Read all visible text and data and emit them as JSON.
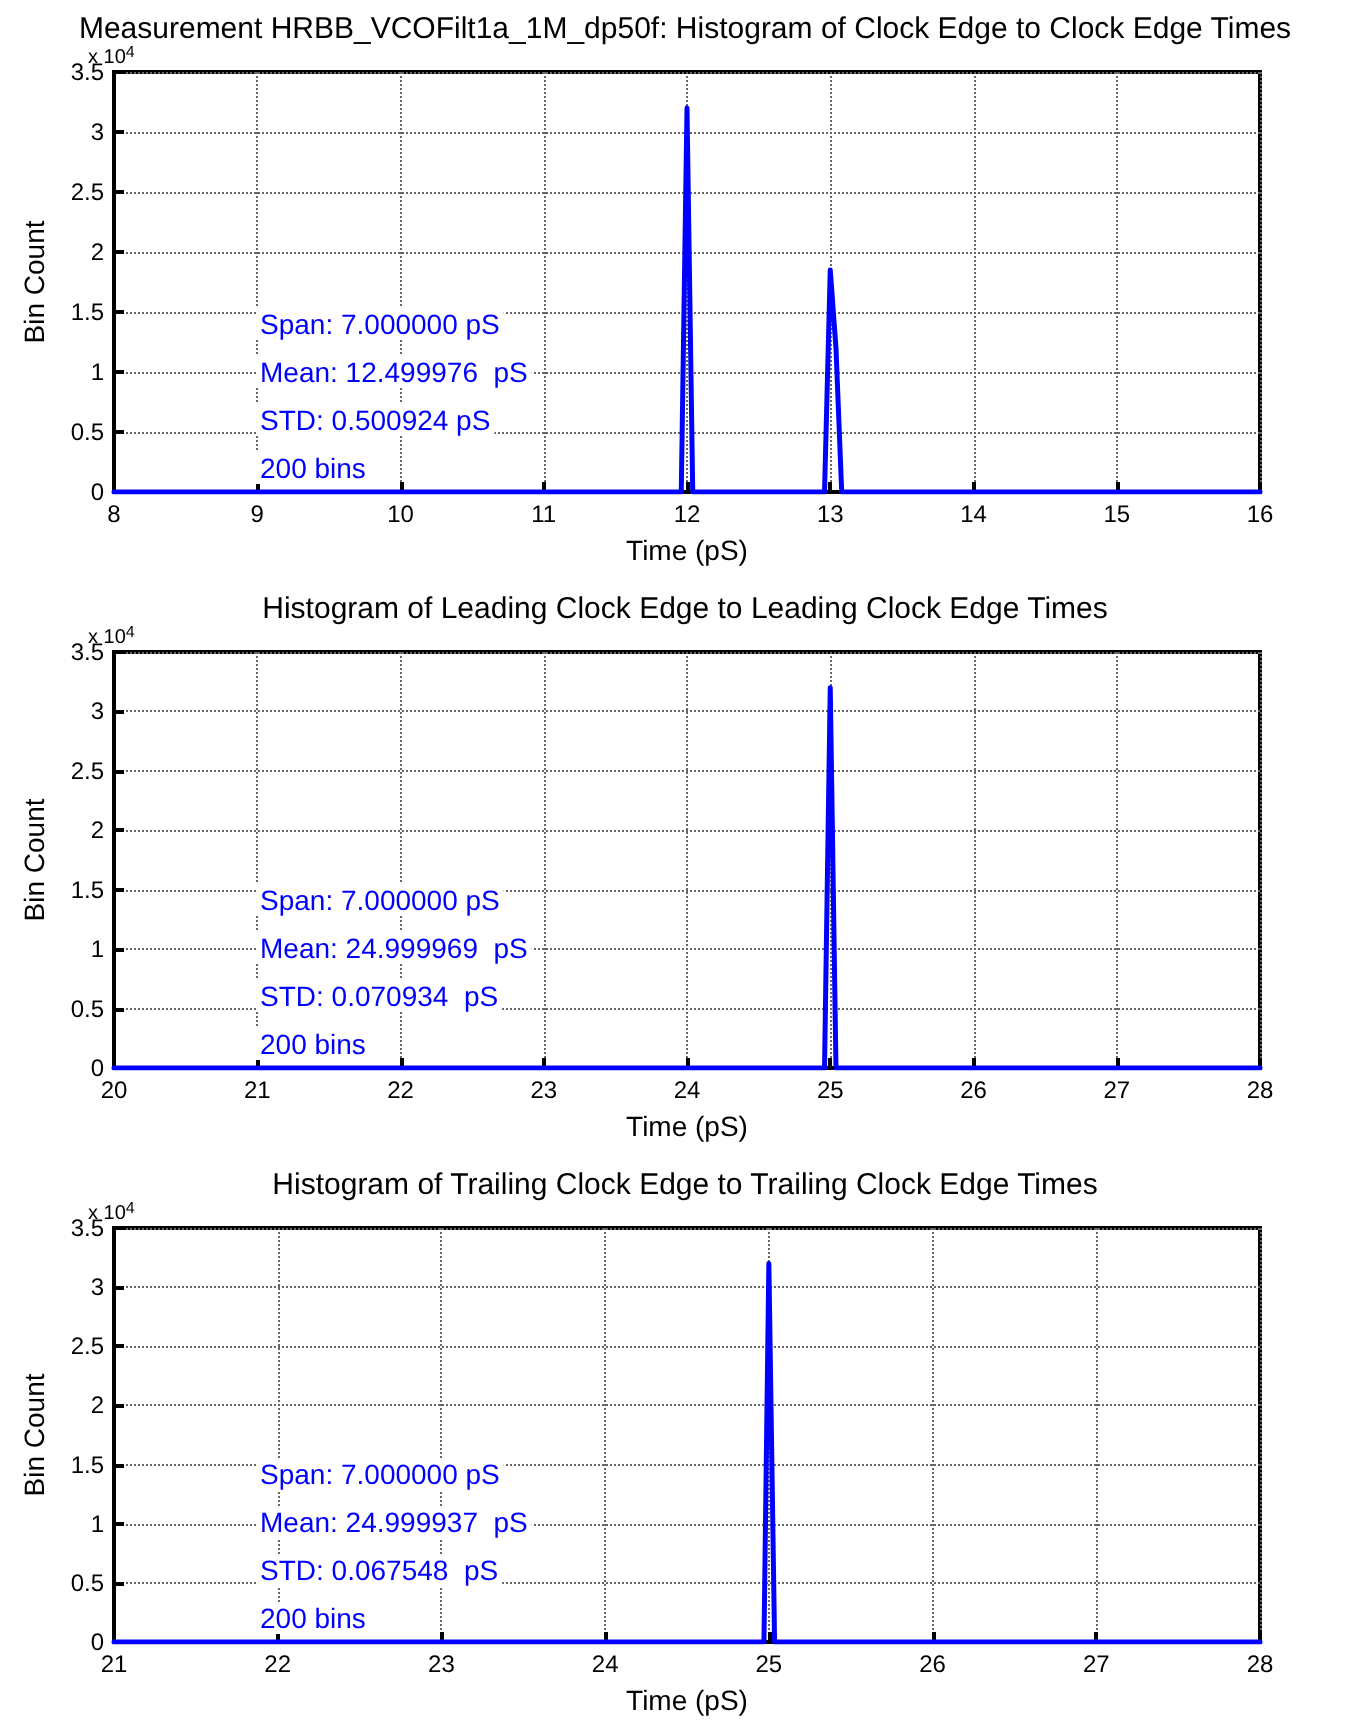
{
  "chart_data": [
    {
      "type": "line",
      "title": "Measurement HRBB_VCOFilt1a_1M_dp50f: Histogram of Clock Edge to Clock Edge Times",
      "xlabel": "Time (pS)",
      "ylabel": "Bin Count",
      "annotations": [
        "x 10$^{4}$",
        "Span: 7.000000 pS",
        "Mean: 12.499976  pS",
        "STD: 0.500924 pS",
        "200 bins"
      ],
      "series": [
        {
          "color": "#0000ff",
          "x": [
            8,
            11.96,
            12.0,
            12.04,
            12.96,
            13.0,
            13.04,
            13.08,
            16
          ],
          "values": [
            0,
            0,
            3.2,
            0,
            0,
            1.85,
            1.2,
            0,
            0
          ]
        }
      ],
      "xlim": [
        8,
        16
      ],
      "xticks": [
        8,
        9,
        10,
        11,
        12,
        13,
        14,
        15,
        16
      ],
      "ylim": [
        0,
        3.5
      ],
      "yticks": [
        0,
        0.5,
        1,
        1.5,
        2,
        2.5,
        3,
        3.5
      ],
      "grid": true,
      "marker": "none",
      "line_style": "solid"
    },
    {
      "type": "line",
      "title": "Histogram of Leading Clock Edge to Leading Clock Edge Times",
      "xlabel": "Time (pS)",
      "ylabel": "Bin Count",
      "annotations": [
        "x 10$^{4}$",
        "Span: 7.000000 pS",
        "Mean: 24.999969  pS",
        "STD: 0.070934  pS",
        "200 bins"
      ],
      "series": [
        {
          "color": "#0000ff",
          "x": [
            20,
            24.96,
            25.0,
            25.04,
            28
          ],
          "values": [
            0,
            0,
            3.2,
            0,
            0
          ]
        }
      ],
      "xlim": [
        20,
        28
      ],
      "xticks": [
        20,
        21,
        22,
        23,
        24,
        25,
        26,
        27,
        28
      ],
      "ylim": [
        0,
        3.5
      ],
      "yticks": [
        0,
        0.5,
        1,
        1.5,
        2,
        2.5,
        3,
        3.5
      ],
      "grid": true,
      "marker": "none",
      "line_style": "solid"
    },
    {
      "type": "line",
      "title": "Histogram of Trailing Clock Edge to Trailing Clock Edge Times",
      "xlabel": "Time (pS)",
      "ylabel": "Bin Count",
      "annotations": [
        "x 10$^{4}$",
        "Span: 7.000000 pS",
        "Mean: 24.999937  pS",
        "STD: 0.067548  pS",
        "200 bins"
      ],
      "series": [
        {
          "color": "#0000ff",
          "x": [
            21,
            24.97,
            25.0,
            25.035,
            28
          ],
          "values": [
            0,
            0,
            3.2,
            0,
            0
          ]
        }
      ],
      "xlim": [
        21,
        28
      ],
      "xticks": [
        21,
        22,
        23,
        24,
        25,
        26,
        27,
        28
      ],
      "ylim": [
        0,
        3.5
      ],
      "yticks": [
        0,
        0.5,
        1,
        1.5,
        2,
        2.5,
        3,
        3.5
      ],
      "grid": true,
      "marker": "none",
      "line_style": "solid"
    }
  ]
}
